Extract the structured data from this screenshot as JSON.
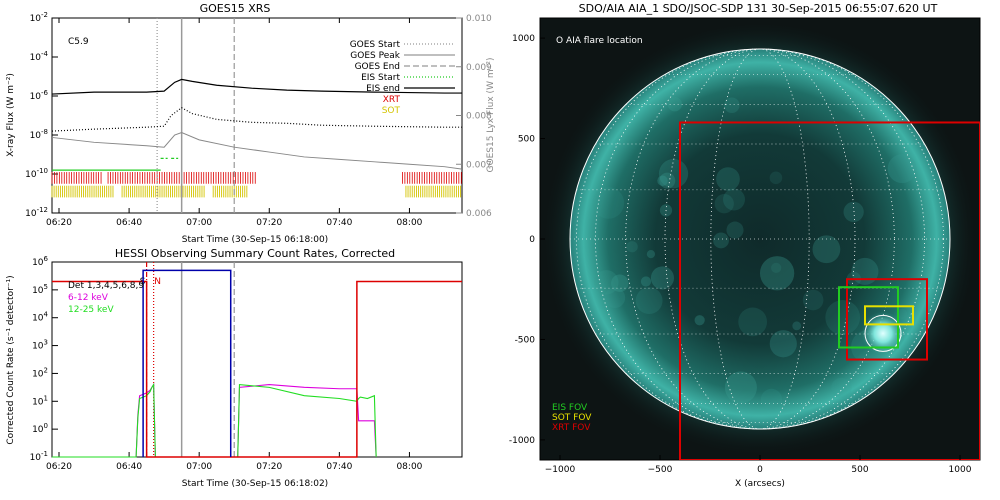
{
  "goes_panel": {
    "title": "GOES15 XRS",
    "class_label": "C5.9",
    "ylabel": "X-ray Flux (W m⁻²)",
    "ylabel_right": "GOES15 Lyx Flux (W m⁻²)",
    "xlabel": "Start Time (30-Sep-15 06:18:00)",
    "legend": [
      {
        "label": "GOES Start",
        "color": "#999999"
      },
      {
        "label": "GOES Peak",
        "color": "#999999"
      },
      {
        "label": "GOES End",
        "color": "#999999"
      },
      {
        "label": "EIS Start",
        "color": "#22cc22"
      },
      {
        "label": "EIS end",
        "color": "#000000"
      },
      {
        "label": "XRT",
        "color": "#dd0000"
      },
      {
        "label": "SOT",
        "color": "#d4c400"
      }
    ]
  },
  "hessi_panel": {
    "title": "HESSI Observing Summary Count Rates, Corrected",
    "ylabel": "Corrected Count Rate (s⁻¹ detector⁻¹)",
    "xlabel": "Start Time (30-Sep-15 06:18:02)",
    "legend": [
      {
        "label": "Det 1,3,4,5,6,8,9",
        "color": "#000000"
      },
      {
        "label": "6-12 keV",
        "color": "#dd00dd"
      },
      {
        "label": "12-25 keV",
        "color": "#22dd22"
      }
    ],
    "markers": [
      "S",
      "N"
    ]
  },
  "aia_panel": {
    "title": "SDO/AIA AIA_1 SDO/JSOC-SDP 131 30-Sep-2015 06:55:07.620 UT",
    "marker_label": "O AIA flare location",
    "xlabel": "X (arcsecs)",
    "fov_legend": [
      {
        "label": "EIS FOV",
        "color": "#22cc22"
      },
      {
        "label": "SOT FOV",
        "color": "#e8e000"
      },
      {
        "label": "XRT FOV",
        "color": "#dd0000"
      }
    ]
  },
  "chart_data": [
    {
      "type": "line",
      "title": "GOES15 XRS",
      "xlabel": "Start Time (30-Sep-15 06:18:00)",
      "ylabel": "X-ray Flux (W m⁻²)",
      "xlim": [
        378,
        495
      ],
      "ylim_log": [
        -12,
        -2
      ],
      "y2lim": [
        0.006,
        0.01
      ],
      "xticks": [
        {
          "v": 380,
          "l": "06:20"
        },
        {
          "v": 400,
          "l": "06:40"
        },
        {
          "v": 420,
          "l": "07:00"
        },
        {
          "v": 440,
          "l": "07:20"
        },
        {
          "v": 460,
          "l": "07:40"
        },
        {
          "v": 480,
          "l": "08:00"
        }
      ],
      "yticks": [
        -2,
        -4,
        -6,
        -8,
        -10,
        -12
      ],
      "y2ticks": [
        0.006,
        0.007,
        0.008,
        0.009,
        0.01
      ],
      "series": [
        {
          "name": "GOES Peak",
          "style": "solid",
          "x": [
            378,
            390,
            405,
            410,
            413,
            415,
            418,
            425,
            435,
            445,
            455,
            470,
            490,
            495
          ],
          "y": [
            -5.9,
            -5.8,
            -5.8,
            -5.75,
            -5.3,
            -5.15,
            -5.25,
            -5.45,
            -5.6,
            -5.7,
            -5.75,
            -5.8,
            -5.85,
            -5.85
          ]
        },
        {
          "name": "GOES Start",
          "style": "dotted",
          "x": [
            378,
            390,
            405,
            410,
            412,
            415,
            418,
            425,
            435,
            445,
            455,
            470,
            490,
            495
          ],
          "y": [
            -7.8,
            -7.7,
            -7.6,
            -7.55,
            -7.0,
            -6.6,
            -6.9,
            -7.2,
            -7.35,
            -7.4,
            -7.5,
            -7.55,
            -7.6,
            -7.6
          ]
        },
        {
          "name": "Lyx",
          "style": "gray",
          "x": [
            378,
            390,
            405,
            410,
            413,
            415,
            420,
            430,
            440,
            450,
            460,
            470,
            480,
            490,
            495
          ],
          "y": [
            0.00755,
            0.00745,
            0.00738,
            0.00735,
            0.0076,
            0.00765,
            0.0075,
            0.00735,
            0.00725,
            0.00715,
            0.0071,
            0.00705,
            0.007,
            0.00695,
            0.0069
          ]
        }
      ],
      "vlines": [
        {
          "name": "GOES Start",
          "x": 408,
          "style": "dotted"
        },
        {
          "name": "GOES Peak",
          "x": 415,
          "style": "solid"
        },
        {
          "name": "GOES End",
          "x": 430,
          "style": "dashed"
        }
      ],
      "eis_boxes": [
        {
          "x": [
            378,
            409
          ],
          "y": -9.8
        },
        {
          "x": [
            409,
            411
          ],
          "y": -9.2
        },
        {
          "x": [
            412,
            414
          ],
          "y": -9.2
        }
      ],
      "xrt_coverage": [
        [
          378,
          392
        ],
        [
          394,
          436
        ],
        [
          478,
          495
        ]
      ],
      "sot_coverage": [
        [
          378,
          396
        ],
        [
          398,
          422
        ],
        [
          424,
          434
        ],
        [
          479,
          495
        ]
      ]
    },
    {
      "type": "line",
      "title": "HESSI Observing Summary Count Rates, Corrected",
      "xlabel": "Start Time (30-Sep-15 06:18:02)",
      "ylabel": "Corrected Count Rate (s⁻¹ detector⁻¹)",
      "xlim": [
        378,
        495
      ],
      "ylim_log": [
        -1,
        6
      ],
      "xticks": [
        {
          "v": 380,
          "l": "06:20"
        },
        {
          "v": 400,
          "l": "06:40"
        },
        {
          "v": 420,
          "l": "07:00"
        },
        {
          "v": 440,
          "l": "07:20"
        },
        {
          "v": 460,
          "l": "07:40"
        },
        {
          "v": 480,
          "l": "08:00"
        }
      ],
      "yticks": [
        -1,
        0,
        1,
        2,
        3,
        4,
        5,
        6
      ],
      "series": [
        {
          "name": "6-12 keV",
          "x": [
            378,
            402,
            402.5,
            403,
            405,
            406,
            406.5,
            407,
            407.5,
            408,
            408.5,
            430,
            431,
            431.5,
            440,
            450,
            460,
            465,
            465.5,
            466,
            468,
            470,
            470.5
          ],
          "y": [
            -1,
            -1,
            0.5,
            1.2,
            1.3,
            1.4,
            1.5,
            1.6,
            -1,
            -1,
            -1,
            -1,
            -1,
            1.5,
            1.6,
            1.5,
            1.45,
            1.45,
            0.3,
            0.3,
            0.3,
            0.3,
            -1
          ]
        },
        {
          "name": "12-25 keV",
          "x": [
            378,
            402,
            402.5,
            403,
            405,
            406,
            406.5,
            407,
            407.5,
            408,
            408.5,
            430,
            431,
            431.5,
            440,
            450,
            460,
            465,
            465.5,
            466,
            468,
            470,
            470.5
          ],
          "y": [
            -1,
            -1,
            0.4,
            1.1,
            1.2,
            1.35,
            1.5,
            1.6,
            -1,
            -1,
            -1,
            -1,
            -1,
            1.6,
            1.5,
            1.2,
            1.1,
            1.0,
            1.1,
            1.15,
            1.1,
            1.2,
            -1
          ]
        },
        {
          "name": "attenuator-red",
          "x": [
            378,
            405,
            405,
            407,
            407,
            465,
            465,
            495
          ],
          "y": [
            5.3,
            5.3,
            -1,
            -1,
            -1,
            -1,
            5.3,
            5.3
          ]
        },
        {
          "name": "attenuator-blue",
          "x": [
            404,
            404,
            429,
            429
          ],
          "y": [
            -1,
            5.7,
            5.7,
            -1
          ]
        }
      ],
      "vlines": [
        {
          "name": "S",
          "x": 405,
          "style": "dashdot"
        },
        {
          "name": "N",
          "x": 407,
          "style": "dotted"
        },
        {
          "name": "peak",
          "x": 415,
          "style": "solid"
        },
        {
          "name": "end",
          "x": 430,
          "style": "dashed"
        }
      ]
    },
    {
      "type": "scatter",
      "title": "SDO/AIA AIA_1 SDO/JSOC-SDP 131 30-Sep-2015 06:55:07.620 UT",
      "xlabel": "X (arcsecs)",
      "xlim": [
        -1100,
        1100
      ],
      "ylim": [
        -1100,
        1100
      ],
      "xticks": [
        -1000,
        -500,
        0,
        500,
        1000
      ],
      "yticks": [
        -1000,
        -500,
        0,
        500,
        1000
      ],
      "solar_radius": 950,
      "flare_location": [
        615,
        -470
      ],
      "fovs": [
        {
          "name": "XRT FOV",
          "color": "#dd0000",
          "x": [
            -400,
            1100
          ],
          "y": [
            -1100,
            580
          ]
        },
        {
          "name": "XRT FOV",
          "color": "#dd0000",
          "x": [
            435,
            835
          ],
          "y": [
            -600,
            -200
          ]
        },
        {
          "name": "EIS FOV",
          "color": "#22cc22",
          "x": [
            395,
            690
          ],
          "y": [
            -540,
            -240
          ]
        },
        {
          "name": "SOT FOV",
          "color": "#e8e000",
          "x": [
            525,
            765
          ],
          "y": [
            -425,
            -335
          ]
        }
      ]
    }
  ]
}
